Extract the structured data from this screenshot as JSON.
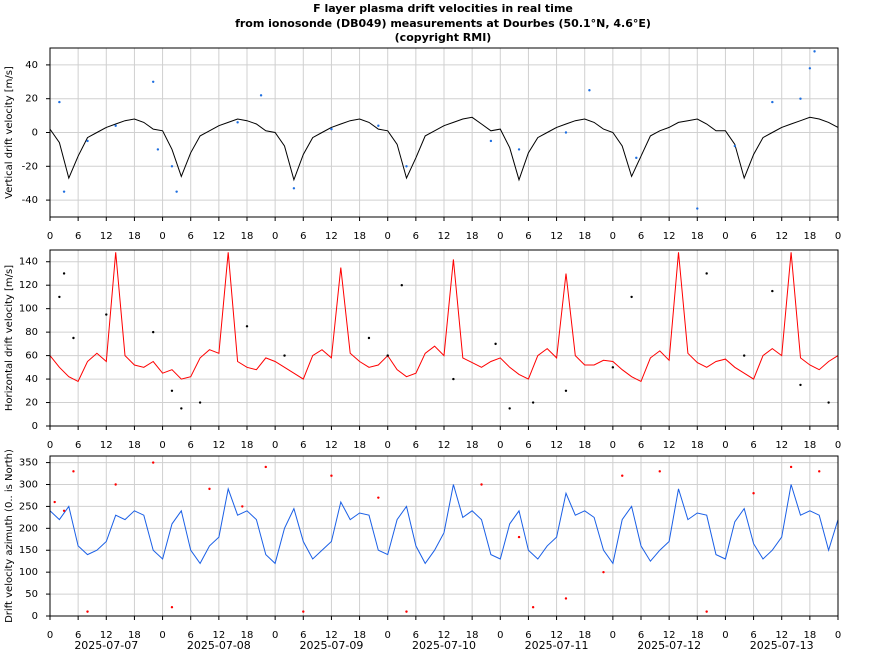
{
  "title": [
    "F layer plasma drift velocities in real time",
    "from ionosonde (DB049) measurements at Dourbes (50.1°N, 4.6°E)",
    "(copyright RMI)"
  ],
  "chart_data": [
    {
      "type": "line",
      "ylabel": "Vertical drift velocity [m/s]",
      "xlim": [
        0,
        168
      ],
      "ylim": [
        -50,
        50
      ],
      "yticks": [
        -40,
        -20,
        0,
        20,
        40
      ],
      "grid": true,
      "xticks": [
        {
          "value": 0,
          "label": "0"
        },
        {
          "value": 6,
          "label": "6"
        },
        {
          "value": 12,
          "label": "12"
        },
        {
          "value": 18,
          "label": "18"
        },
        {
          "value": 24,
          "label": "0"
        },
        {
          "value": 30,
          "label": "6"
        },
        {
          "value": 36,
          "label": "12"
        },
        {
          "value": 42,
          "label": "18"
        },
        {
          "value": 48,
          "label": "0"
        },
        {
          "value": 54,
          "label": "6"
        },
        {
          "value": 60,
          "label": "12"
        },
        {
          "value": 66,
          "label": "18"
        },
        {
          "value": 72,
          "label": "0"
        },
        {
          "value": 78,
          "label": "6"
        },
        {
          "value": 84,
          "label": "12"
        },
        {
          "value": 90,
          "label": "18"
        },
        {
          "value": 96,
          "label": "0"
        },
        {
          "value": 102,
          "label": "6"
        },
        {
          "value": 108,
          "label": "12"
        },
        {
          "value": 114,
          "label": "18"
        },
        {
          "value": 120,
          "label": "0"
        },
        {
          "value": 126,
          "label": "6"
        },
        {
          "value": 132,
          "label": "12"
        },
        {
          "value": 138,
          "label": "18"
        },
        {
          "value": 144,
          "label": "0"
        },
        {
          "value": 150,
          "label": "6"
        },
        {
          "value": 156,
          "label": "12"
        },
        {
          "value": 162,
          "label": "18"
        },
        {
          "value": 168,
          "label": "0"
        }
      ],
      "x": [
        0,
        2,
        4,
        6,
        8,
        10,
        12,
        14,
        16,
        18,
        20,
        22,
        24,
        26,
        28,
        30,
        32,
        34,
        36,
        38,
        40,
        42,
        44,
        46,
        48,
        50,
        52,
        54,
        56,
        58,
        60,
        62,
        64,
        66,
        68,
        70,
        72,
        74,
        76,
        78,
        80,
        82,
        84,
        86,
        88,
        90,
        92,
        94,
        96,
        98,
        100,
        102,
        104,
        106,
        108,
        110,
        112,
        114,
        116,
        118,
        120,
        122,
        124,
        126,
        128,
        130,
        132,
        134,
        136,
        138,
        140,
        142,
        144,
        146,
        148,
        150,
        152,
        154,
        156,
        158,
        160,
        162,
        164,
        166,
        168
      ],
      "series": [
        {
          "kind": "line",
          "color": "#000000",
          "values": [
            2,
            -6,
            -27,
            -14,
            -3,
            0,
            3,
            5,
            7,
            8,
            6,
            2,
            1,
            -10,
            -26,
            -12,
            -2,
            1,
            4,
            6,
            8,
            7,
            5,
            1,
            0,
            -8,
            -28,
            -13,
            -3,
            0,
            3,
            5,
            7,
            8,
            6,
            2,
            1,
            -7,
            -27,
            -15,
            -2,
            1,
            4,
            6,
            8,
            9,
            5,
            1,
            2,
            -9,
            -28,
            -12,
            -3,
            0,
            3,
            5,
            7,
            8,
            6,
            2,
            0,
            -8,
            -26,
            -14,
            -2,
            1,
            3,
            6,
            7,
            8,
            5,
            1,
            1,
            -7,
            -27,
            -13,
            -3,
            0,
            3,
            5,
            7,
            9,
            8,
            6,
            3
          ]
        },
        {
          "kind": "points",
          "color": "#1f6fe0",
          "x": [
            2,
            3,
            8,
            14,
            22,
            23,
            26,
            27,
            40,
            45,
            52,
            60,
            76,
            100,
            115,
            125,
            138,
            160,
            162,
            163,
            146,
            154,
            94,
            70,
            110
          ],
          "values": [
            18,
            -35,
            -5,
            4,
            30,
            -10,
            -20,
            -35,
            6,
            22,
            -33,
            2,
            -20,
            -10,
            25,
            -15,
            -45,
            20,
            38,
            48,
            -8,
            18,
            -5,
            4,
            0
          ]
        }
      ]
    },
    {
      "type": "line",
      "ylabel": "Horizontal drift velocity [m/s]",
      "xlim": [
        0,
        168
      ],
      "ylim": [
        0,
        150
      ],
      "yticks": [
        0,
        20,
        40,
        60,
        80,
        100,
        120,
        140
      ],
      "grid": true,
      "xticks": [
        {
          "value": 0,
          "label": "0"
        },
        {
          "value": 6,
          "label": "6"
        },
        {
          "value": 12,
          "label": "12"
        },
        {
          "value": 18,
          "label": "18"
        },
        {
          "value": 24,
          "label": "0"
        },
        {
          "value": 30,
          "label": "6"
        },
        {
          "value": 36,
          "label": "12"
        },
        {
          "value": 42,
          "label": "18"
        },
        {
          "value": 48,
          "label": "0"
        },
        {
          "value": 54,
          "label": "6"
        },
        {
          "value": 60,
          "label": "12"
        },
        {
          "value": 66,
          "label": "18"
        },
        {
          "value": 72,
          "label": "0"
        },
        {
          "value": 78,
          "label": "6"
        },
        {
          "value": 84,
          "label": "12"
        },
        {
          "value": 90,
          "label": "18"
        },
        {
          "value": 96,
          "label": "0"
        },
        {
          "value": 102,
          "label": "6"
        },
        {
          "value": 108,
          "label": "12"
        },
        {
          "value": 114,
          "label": "18"
        },
        {
          "value": 120,
          "label": "0"
        },
        {
          "value": 126,
          "label": "6"
        },
        {
          "value": 132,
          "label": "12"
        },
        {
          "value": 138,
          "label": "18"
        },
        {
          "value": 144,
          "label": "0"
        },
        {
          "value": 150,
          "label": "6"
        },
        {
          "value": 156,
          "label": "12"
        },
        {
          "value": 162,
          "label": "18"
        },
        {
          "value": 168,
          "label": "0"
        }
      ],
      "x": [
        0,
        2,
        4,
        6,
        8,
        10,
        12,
        14,
        16,
        18,
        20,
        22,
        24,
        26,
        28,
        30,
        32,
        34,
        36,
        38,
        40,
        42,
        44,
        46,
        48,
        50,
        52,
        54,
        56,
        58,
        60,
        62,
        64,
        66,
        68,
        70,
        72,
        74,
        76,
        78,
        80,
        82,
        84,
        86,
        88,
        90,
        92,
        94,
        96,
        98,
        100,
        102,
        104,
        106,
        108,
        110,
        112,
        114,
        116,
        118,
        120,
        122,
        124,
        126,
        128,
        130,
        132,
        134,
        136,
        138,
        140,
        142,
        144,
        146,
        148,
        150,
        152,
        154,
        156,
        158,
        160,
        162,
        164,
        166,
        168
      ],
      "series": [
        {
          "kind": "line",
          "color": "#ff0000",
          "values": [
            60,
            50,
            42,
            38,
            55,
            62,
            55,
            148,
            60,
            52,
            50,
            55,
            45,
            48,
            40,
            42,
            58,
            65,
            62,
            148,
            55,
            50,
            48,
            58,
            55,
            50,
            45,
            40,
            60,
            65,
            58,
            135,
            62,
            55,
            50,
            52,
            60,
            48,
            42,
            45,
            62,
            68,
            60,
            142,
            58,
            54,
            50,
            55,
            58,
            50,
            44,
            40,
            60,
            66,
            58,
            130,
            60,
            52,
            52,
            56,
            55,
            48,
            42,
            38,
            58,
            64,
            56,
            148,
            62,
            54,
            50,
            55,
            57,
            50,
            45,
            40,
            60,
            66,
            60,
            148,
            58,
            52,
            48,
            55,
            60
          ]
        },
        {
          "kind": "points",
          "color": "#000000",
          "x": [
            2,
            3,
            5,
            12,
            22,
            26,
            28,
            32,
            50,
            68,
            72,
            75,
            95,
            98,
            103,
            110,
            124,
            140,
            148,
            154,
            160,
            166,
            120,
            86,
            42
          ],
          "values": [
            110,
            130,
            75,
            95,
            80,
            30,
            15,
            20,
            60,
            75,
            60,
            120,
            70,
            15,
            20,
            30,
            110,
            130,
            60,
            115,
            35,
            20,
            50,
            40,
            85
          ]
        }
      ]
    },
    {
      "type": "line",
      "ylabel": "Drift velocity azimuth (0.. is North)",
      "xlim": [
        0,
        168
      ],
      "ylim": [
        0,
        365
      ],
      "yticks": [
        0,
        50,
        100,
        150,
        200,
        250,
        300,
        350
      ],
      "grid": true,
      "xticks": [
        {
          "value": 0,
          "label": "0"
        },
        {
          "value": 6,
          "label": "6"
        },
        {
          "value": 12,
          "label": "12"
        },
        {
          "value": 18,
          "label": "18"
        },
        {
          "value": 24,
          "label": "0"
        },
        {
          "value": 30,
          "label": "6"
        },
        {
          "value": 36,
          "label": "12"
        },
        {
          "value": 42,
          "label": "18"
        },
        {
          "value": 48,
          "label": "0"
        },
        {
          "value": 54,
          "label": "6"
        },
        {
          "value": 60,
          "label": "12"
        },
        {
          "value": 66,
          "label": "18"
        },
        {
          "value": 72,
          "label": "0"
        },
        {
          "value": 78,
          "label": "6"
        },
        {
          "value": 84,
          "label": "12"
        },
        {
          "value": 90,
          "label": "18"
        },
        {
          "value": 96,
          "label": "0"
        },
        {
          "value": 102,
          "label": "6"
        },
        {
          "value": 108,
          "label": "12"
        },
        {
          "value": 114,
          "label": "18"
        },
        {
          "value": 120,
          "label": "0"
        },
        {
          "value": 126,
          "label": "6"
        },
        {
          "value": 132,
          "label": "12"
        },
        {
          "value": 138,
          "label": "18"
        },
        {
          "value": 144,
          "label": "0"
        },
        {
          "value": 150,
          "label": "6"
        },
        {
          "value": 156,
          "label": "12"
        },
        {
          "value": 162,
          "label": "18"
        },
        {
          "value": 168,
          "label": "0"
        }
      ],
      "date_labels": [
        {
          "value": 12,
          "label": "2025-07-07"
        },
        {
          "value": 36,
          "label": "2025-07-08"
        },
        {
          "value": 60,
          "label": "2025-07-09"
        },
        {
          "value": 84,
          "label": "2025-07-10"
        },
        {
          "value": 108,
          "label": "2025-07-11"
        },
        {
          "value": 132,
          "label": "2025-07-12"
        },
        {
          "value": 156,
          "label": "2025-07-13"
        }
      ],
      "x": [
        0,
        2,
        4,
        6,
        8,
        10,
        12,
        14,
        16,
        18,
        20,
        22,
        24,
        26,
        28,
        30,
        32,
        34,
        36,
        38,
        40,
        42,
        44,
        46,
        48,
        50,
        52,
        54,
        56,
        58,
        60,
        62,
        64,
        66,
        68,
        70,
        72,
        74,
        76,
        78,
        80,
        82,
        84,
        86,
        88,
        90,
        92,
        94,
        96,
        98,
        100,
        102,
        104,
        106,
        108,
        110,
        112,
        114,
        116,
        118,
        120,
        122,
        124,
        126,
        128,
        130,
        132,
        134,
        136,
        138,
        140,
        142,
        144,
        146,
        148,
        150,
        152,
        154,
        156,
        158,
        160,
        162,
        164,
        166,
        168
      ],
      "series": [
        {
          "kind": "line",
          "color": "#1a5fe6",
          "values": [
            240,
            220,
            250,
            160,
            140,
            150,
            170,
            230,
            220,
            240,
            230,
            150,
            130,
            210,
            240,
            150,
            120,
            160,
            180,
            290,
            230,
            240,
            220,
            140,
            120,
            200,
            245,
            170,
            130,
            150,
            170,
            260,
            220,
            235,
            230,
            150,
            140,
            220,
            250,
            160,
            120,
            150,
            190,
            300,
            225,
            240,
            220,
            140,
            130,
            210,
            240,
            150,
            130,
            160,
            180,
            280,
            230,
            240,
            225,
            150,
            120,
            220,
            250,
            160,
            125,
            150,
            170,
            290,
            220,
            235,
            230,
            140,
            130,
            215,
            245,
            165,
            130,
            150,
            180,
            300,
            230,
            240,
            230,
            150,
            220
          ]
        },
        {
          "kind": "points",
          "color": "#ff0000",
          "x": [
            1,
            3,
            5,
            8,
            14,
            22,
            26,
            34,
            41,
            46,
            54,
            60,
            70,
            76,
            92,
            100,
            103,
            110,
            122,
            130,
            140,
            150,
            158,
            164,
            118
          ],
          "values": [
            260,
            240,
            330,
            10,
            300,
            350,
            20,
            290,
            250,
            340,
            10,
            320,
            270,
            10,
            300,
            180,
            20,
            40,
            320,
            330,
            10,
            280,
            340,
            330,
            100
          ]
        }
      ]
    }
  ]
}
